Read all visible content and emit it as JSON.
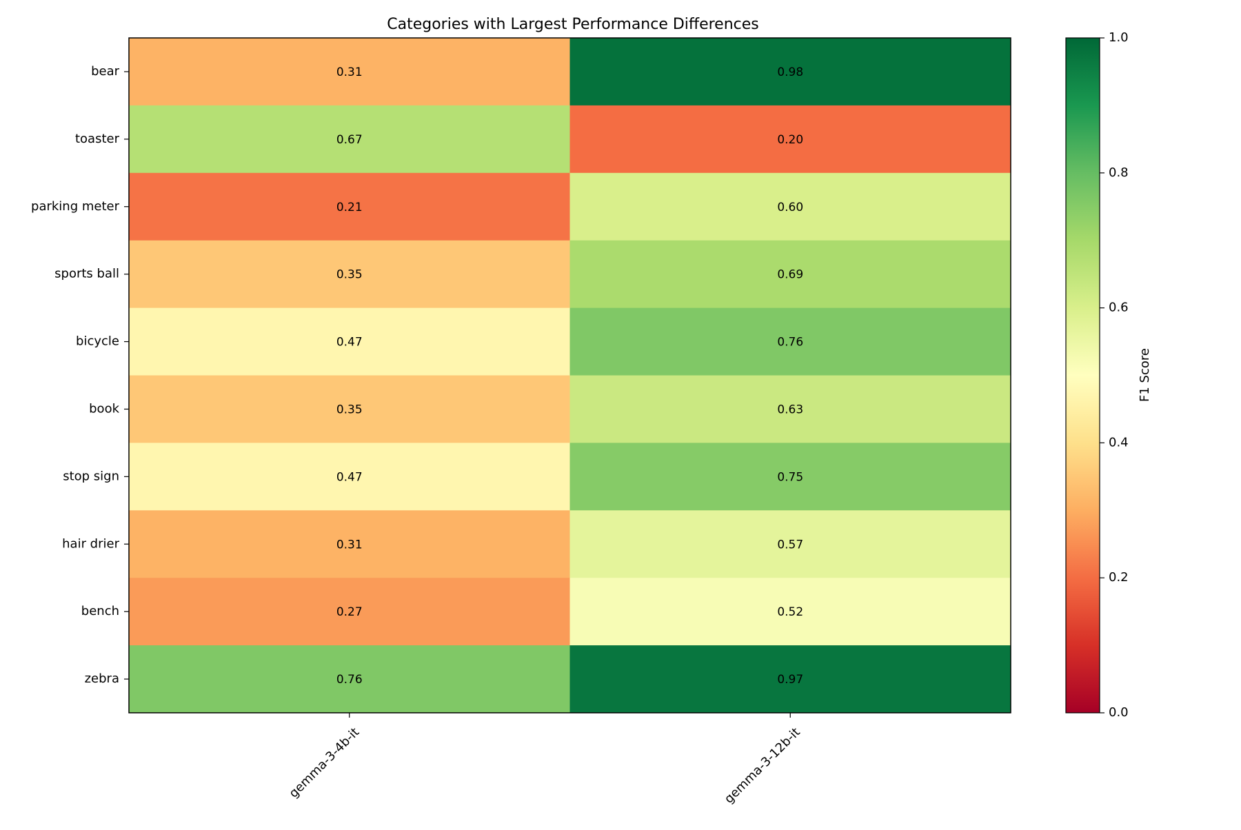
{
  "chart_data": {
    "type": "heatmap",
    "title": "Categories with Largest Performance Differences",
    "xlabel": "",
    "ylabel": "",
    "columns": [
      "gemma-3-4b-it",
      "gemma-3-12b-it"
    ],
    "rows": [
      "bear",
      "toaster",
      "parking meter",
      "sports ball",
      "bicycle",
      "book",
      "stop sign",
      "hair drier",
      "bench",
      "zebra"
    ],
    "values": [
      [
        0.31,
        0.98
      ],
      [
        0.67,
        0.2
      ],
      [
        0.21,
        0.6
      ],
      [
        0.35,
        0.69
      ],
      [
        0.47,
        0.76
      ],
      [
        0.35,
        0.63
      ],
      [
        0.47,
        0.75
      ],
      [
        0.31,
        0.57
      ],
      [
        0.27,
        0.52
      ],
      [
        0.76,
        0.97
      ]
    ],
    "value_labels": [
      [
        "0.31",
        "0.98"
      ],
      [
        "0.67",
        "0.20"
      ],
      [
        "0.21",
        "0.60"
      ],
      [
        "0.35",
        "0.69"
      ],
      [
        "0.47",
        "0.76"
      ],
      [
        "0.35",
        "0.63"
      ],
      [
        "0.47",
        "0.75"
      ],
      [
        "0.31",
        "0.57"
      ],
      [
        "0.27",
        "0.52"
      ],
      [
        "0.76",
        "0.97"
      ]
    ],
    "colormap": "RdYlGn",
    "colorbar": {
      "label": "F1 Score",
      "range": [
        0.0,
        1.0
      ],
      "ticks": [
        0.0,
        0.2,
        0.4,
        0.6,
        0.8,
        1.0
      ],
      "tick_labels": [
        "0.0",
        "0.2",
        "0.4",
        "0.6",
        "0.8",
        "1.0"
      ]
    },
    "grid": false
  }
}
